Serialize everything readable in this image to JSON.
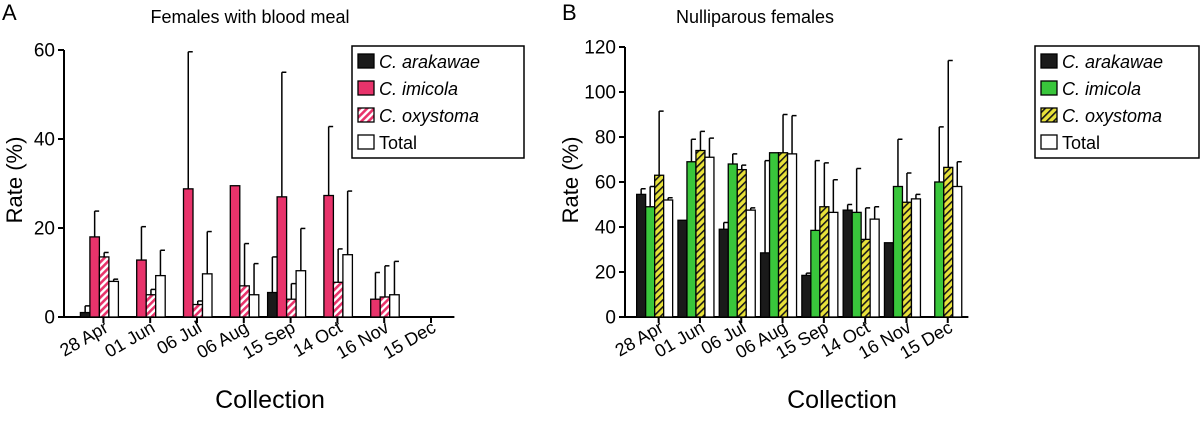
{
  "colors": {
    "arakawae": "#1a1a1a",
    "imicola_A": "#e8336b",
    "imicola_B": "#39c63b",
    "oxystoma_A_hatch": "#e8336b",
    "oxystoma_B_hatch": "#e8e23a",
    "total": "#ffffff",
    "stroke": "#000000"
  },
  "chart_data": [
    {
      "panel": "A",
      "type": "bar",
      "title": "Females with blood meal",
      "xlabel": "Collection",
      "ylabel": "Rate (%)",
      "ylim": [
        0,
        60
      ],
      "yticks": [
        "0",
        "20",
        "40",
        "60"
      ],
      "ytick_values": [
        0,
        20,
        40,
        60
      ],
      "categories": [
        "28 Apr",
        "01 Jun",
        "06 Jul",
        "06 Aug",
        "15 Sep",
        "14 Oct",
        "16 Nov",
        "15 Dec"
      ],
      "legend_position": "top-right",
      "series": [
        {
          "name": "C. arakawae",
          "italic": true,
          "style": "solid-dark",
          "values": [
            1.0,
            0,
            0,
            0,
            5.5,
            0,
            0,
            0
          ],
          "errors": [
            1.5,
            0,
            0,
            0,
            8.0,
            0,
            0,
            0
          ]
        },
        {
          "name": "C. imicola",
          "italic": true,
          "style": "solid-color",
          "values": [
            18.0,
            12.8,
            28.8,
            29.5,
            27.0,
            27.3,
            4.0,
            0
          ],
          "errors": [
            5.8,
            7.5,
            30.8,
            0,
            28.0,
            15.5,
            6.0,
            0
          ]
        },
        {
          "name": "C. oxystoma",
          "italic": true,
          "style": "hatched",
          "values": [
            13.5,
            5.0,
            2.8,
            7.0,
            4.0,
            7.8,
            4.5,
            0
          ],
          "errors": [
            1.0,
            1.2,
            0.8,
            9.5,
            3.5,
            7.5,
            7.0,
            0
          ]
        },
        {
          "name": "Total",
          "italic": false,
          "style": "open",
          "values": [
            8.0,
            9.3,
            9.7,
            5.0,
            10.4,
            14.0,
            5.0,
            0
          ],
          "errors": [
            0.5,
            5.7,
            9.5,
            7.0,
            9.5,
            14.3,
            7.5,
            0
          ]
        }
      ]
    },
    {
      "panel": "B",
      "type": "bar",
      "title": "Nulliparous females",
      "xlabel": "Collection",
      "ylabel": "Rate (%)",
      "ylim": [
        0,
        120
      ],
      "yticks": [
        "0",
        "20",
        "40",
        "60",
        "80",
        "100",
        "120"
      ],
      "ytick_values": [
        0,
        20,
        40,
        60,
        80,
        100,
        120
      ],
      "categories": [
        "28 Apr",
        "01 Jun",
        "06 Jul",
        "06 Aug",
        "15 Sep",
        "14 Oct",
        "16 Nov",
        "15 Dec"
      ],
      "legend_position": "top-right",
      "series": [
        {
          "name": "C. arakawae",
          "italic": true,
          "style": "solid-dark",
          "values": [
            54.5,
            43.0,
            39.0,
            28.5,
            18.5,
            47.5,
            33.0,
            0
          ],
          "errors": [
            2.5,
            0,
            3.0,
            41.0,
            1.0,
            2.5,
            0,
            0
          ]
        },
        {
          "name": "C. imicola",
          "italic": true,
          "style": "solid-color",
          "values": [
            49.0,
            69.0,
            68.0,
            73.0,
            38.5,
            46.5,
            58.0,
            60.0
          ],
          "errors": [
            9.0,
            10.0,
            4.5,
            0,
            31.0,
            19.5,
            21.0,
            24.5
          ]
        },
        {
          "name": "C. oxystoma",
          "italic": true,
          "style": "hatched",
          "values": [
            63.0,
            74.0,
            65.5,
            73.0,
            49.0,
            34.5,
            51.0,
            66.5
          ],
          "errors": [
            28.5,
            8.5,
            2.0,
            17.0,
            19.5,
            14.0,
            13.0,
            47.5
          ]
        },
        {
          "name": "Total",
          "italic": false,
          "style": "open",
          "values": [
            52.0,
            71.0,
            47.5,
            72.5,
            46.5,
            43.5,
            52.5,
            58.0
          ],
          "errors": [
            1.0,
            8.5,
            1.0,
            17.0,
            14.5,
            5.5,
            2.0,
            11.0
          ]
        }
      ]
    }
  ]
}
